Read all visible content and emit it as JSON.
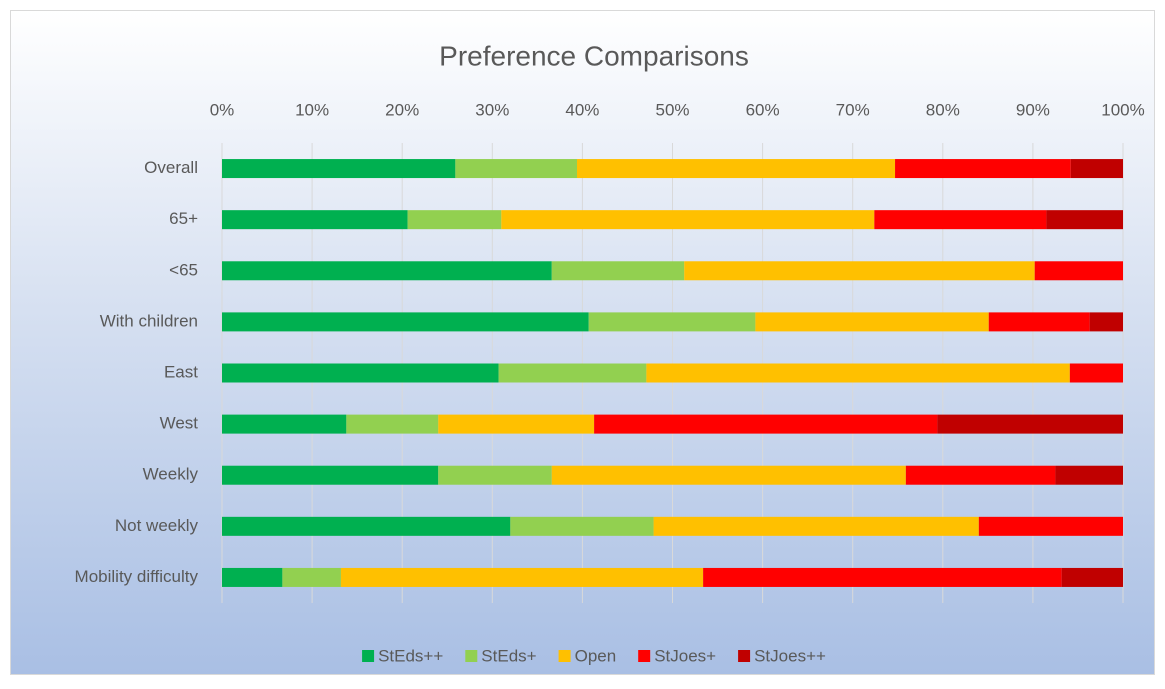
{
  "chart_data": {
    "type": "stacked_bar_horizontal",
    "title": "Preference Comparisons",
    "categories": [
      "Overall",
      "65+",
      "<65",
      "With children",
      "East",
      "West",
      "Weekly",
      "Not weekly",
      "Mobility difficulty"
    ],
    "series": [
      {
        "name": "StEds++",
        "color": "#00b050",
        "values": [
          25.9,
          20.6,
          36.6,
          40.7,
          30.7,
          13.8,
          24.0,
          32.0,
          6.7
        ]
      },
      {
        "name": "StEds+",
        "color": "#92d050",
        "values": [
          13.5,
          10.4,
          14.7,
          18.5,
          16.4,
          10.2,
          12.6,
          15.9,
          6.5
        ]
      },
      {
        "name": "Open",
        "color": "#ffc000",
        "values": [
          35.3,
          41.4,
          38.9,
          25.9,
          47.0,
          17.3,
          39.3,
          36.1,
          40.2
        ]
      },
      {
        "name": "StJoes+",
        "color": "#ff0000",
        "values": [
          19.5,
          19.1,
          9.8,
          11.2,
          5.9,
          38.1,
          16.6,
          16.0,
          39.8
        ]
      },
      {
        "name": "StJoes++",
        "color": "#c00000",
        "values": [
          5.8,
          8.5,
          0,
          3.7,
          0,
          20.6,
          7.5,
          0,
          6.8
        ]
      }
    ],
    "xlim": [
      0,
      100
    ],
    "xticks": [
      {
        "value": 0,
        "label": "0%"
      },
      {
        "value": 10,
        "label": "10%"
      },
      {
        "value": 20,
        "label": "20%"
      },
      {
        "value": 30,
        "label": "30%"
      },
      {
        "value": 40,
        "label": "40%"
      },
      {
        "value": 50,
        "label": "50%"
      },
      {
        "value": 60,
        "label": "60%"
      },
      {
        "value": 70,
        "label": "70%"
      },
      {
        "value": 80,
        "label": "80%"
      },
      {
        "value": 90,
        "label": "90%"
      },
      {
        "value": 100,
        "label": "100%"
      }
    ],
    "grid": true,
    "legend": "bottom"
  }
}
